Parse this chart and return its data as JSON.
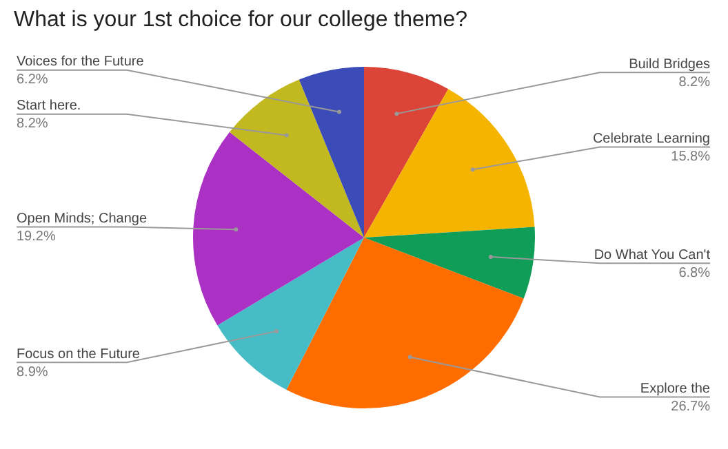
{
  "chart_data": {
    "type": "pie",
    "title": "What is your 1st choice for our college theme?",
    "categories": [
      "Build Bridges",
      "Celebrate Learning",
      "Do What You Can't",
      "Explore the",
      "Focus on the Future",
      "Open Minds; Change",
      "Start here.",
      "Voices for the Future"
    ],
    "values": [
      8.2,
      15.8,
      6.8,
      26.7,
      8.9,
      19.2,
      8.2,
      6.2
    ],
    "colors": [
      "#db4437",
      "#f4b400",
      "#0f9d58",
      "#ff6d01",
      "#46bdc6",
      "#ab30c4",
      "#c2b820",
      "#3b4cb8"
    ],
    "value_labels": [
      "8.2%",
      "15.8%",
      "6.8%",
      "26.7%",
      "8.9%",
      "19.2%",
      "8.2%",
      "6.2%"
    ],
    "legend": false
  }
}
